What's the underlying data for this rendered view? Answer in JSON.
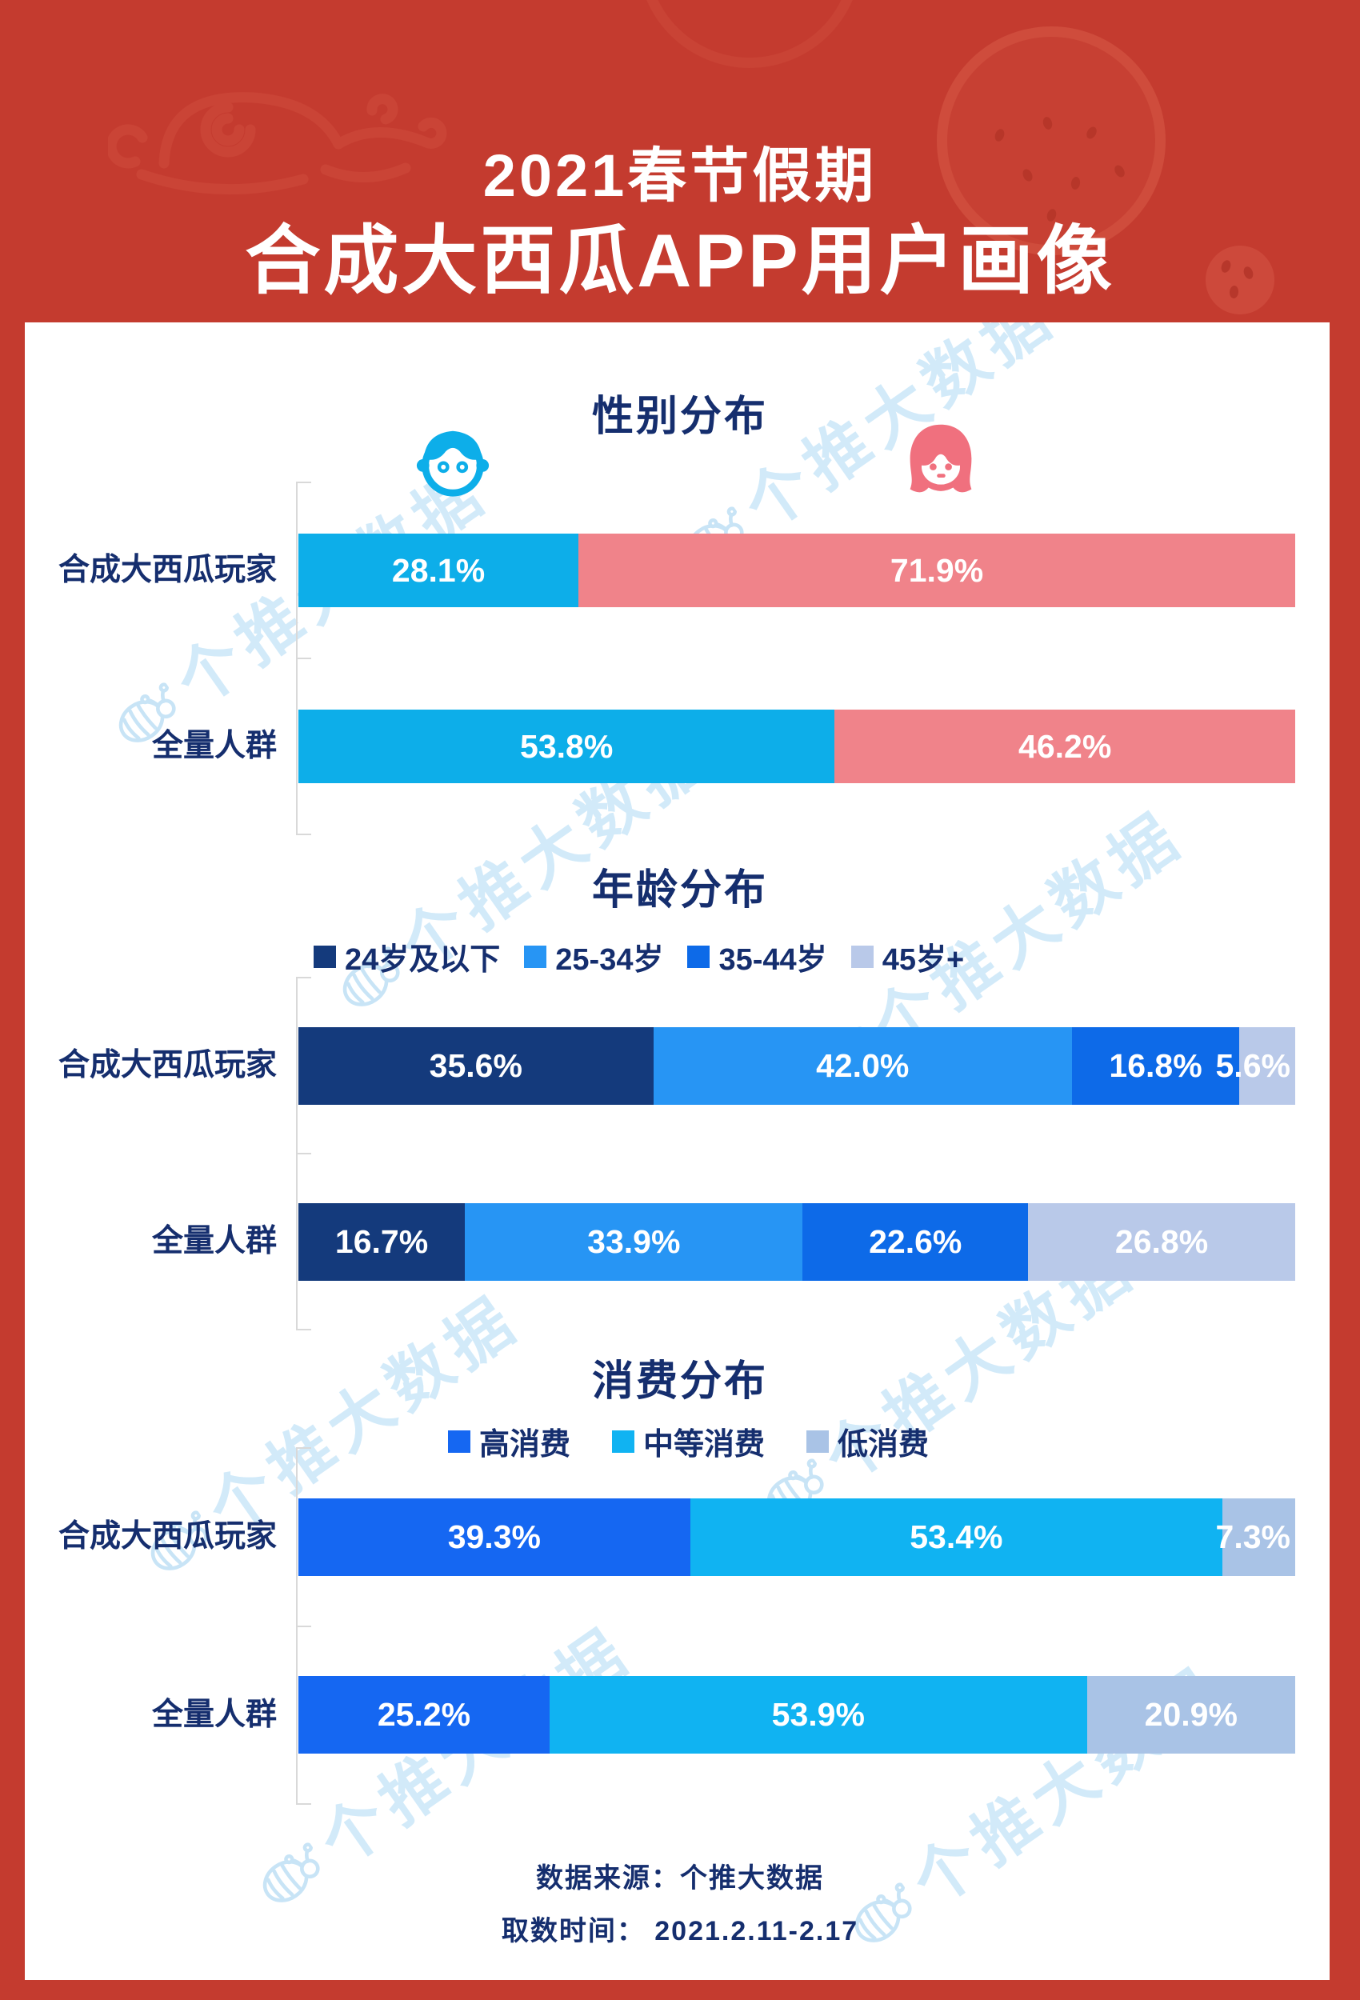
{
  "header": {
    "title_line1": "2021春节假期",
    "title_line2": "合成大西瓜APP用户画像"
  },
  "sections": {
    "gender": {
      "title": "性别分布"
    },
    "age": {
      "title": "年龄分布"
    },
    "consumption": {
      "title": "消费分布"
    }
  },
  "watermark": {
    "text": "个推大数据",
    "icon": "getui-snail-logo",
    "color": "#CBE7F8"
  },
  "footer": {
    "source": "数据来源：个推大数据",
    "period": "取数时间： 2021.2.11-2.17"
  },
  "palette": {
    "background_red": "#C43B2F",
    "decoration_red": "#CE4A3B",
    "seed_red": "#B23428",
    "navy_text": "#152E6E",
    "axis_gray": "#D9D9D9"
  },
  "chart_data": [
    {
      "id": "gender",
      "type": "bar",
      "orientation": "horizontal_stacked",
      "title": "性别分布",
      "unit": "%",
      "legend_style": "icons: male=blue boy face, female=pink girl face",
      "categories": [
        "合成大西瓜玩家",
        "全量人群"
      ],
      "series": [
        {
          "name": "male",
          "color": "#0DAEE9",
          "values": [
            28.1,
            53.8
          ]
        },
        {
          "name": "female",
          "color": "#F0838A",
          "values": [
            71.9,
            46.2
          ]
        }
      ]
    },
    {
      "id": "age",
      "type": "bar",
      "orientation": "horizontal_stacked",
      "title": "年龄分布",
      "unit": "%",
      "legend_position": "top",
      "categories": [
        "合成大西瓜玩家",
        "全量人群"
      ],
      "series": [
        {
          "name": "24岁及以下",
          "color": "#143A7C",
          "values": [
            35.6,
            16.7
          ]
        },
        {
          "name": "25-34岁",
          "color": "#2795F4",
          "values": [
            42.0,
            33.9
          ]
        },
        {
          "name": "35-44岁",
          "color": "#0D6AE8",
          "values": [
            16.8,
            22.6
          ]
        },
        {
          "name": "45岁+",
          "color": "#B9C9E9",
          "values": [
            5.6,
            26.8
          ]
        }
      ]
    },
    {
      "id": "consumption",
      "type": "bar",
      "orientation": "horizontal_stacked",
      "title": "消费分布",
      "unit": "%",
      "legend_position": "top",
      "categories": [
        "合成大西瓜玩家",
        "全量人群"
      ],
      "series": [
        {
          "name": "高消费",
          "color": "#1567F2",
          "values": [
            39.3,
            25.2
          ]
        },
        {
          "name": "中等消费",
          "color": "#10B3F2",
          "values": [
            53.4,
            53.9
          ]
        },
        {
          "name": "低消费",
          "color": "#A9C3E6",
          "values": [
            7.3,
            20.9
          ]
        }
      ]
    }
  ]
}
